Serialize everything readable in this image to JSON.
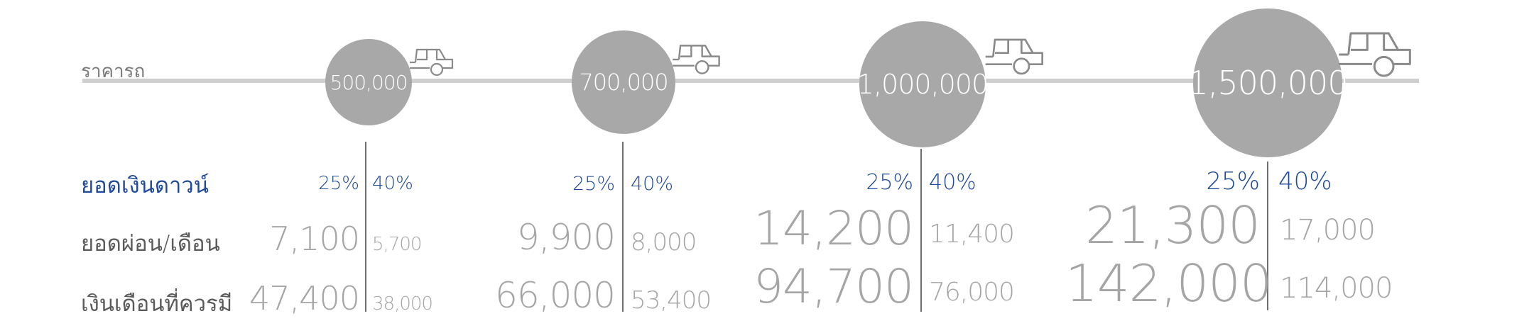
{
  "labels": {
    "price": "ราคารถ",
    "down_payment": "ยอดเงินดาวน์",
    "monthly_payment": "ยอดผ่อน/เดือน",
    "required_salary": "เงินเดือนที่ควรมี"
  },
  "tiers": [
    {
      "price": "500,000",
      "pct_a": "25%",
      "pct_b": "40%",
      "pay_a": "7,100",
      "pay_b": "5,700",
      "salary_a": "47,400",
      "salary_b": "38,000"
    },
    {
      "price": "700,000",
      "pct_a": "25%",
      "pct_b": "40%",
      "pay_a": "9,900",
      "pay_b": "8,000",
      "salary_a": "66,000",
      "salary_b": "53,400"
    },
    {
      "price": "1,000,000",
      "pct_a": "25%",
      "pct_b": "40%",
      "pay_a": "14,200",
      "pay_b": "11,400",
      "salary_a": "94,700",
      "salary_b": "76,000"
    },
    {
      "price": "1,500,000",
      "pct_a": "25%",
      "pct_b": "40%",
      "pay_a": "21,300",
      "pay_b": "17,000",
      "salary_a": "142,000",
      "salary_b": "114,000"
    }
  ],
  "icons": {
    "car": "car-icon"
  },
  "colors": {
    "accent": "#1f4a9a",
    "circle": "#a8a8a8",
    "line": "#cfcfcf",
    "values": "#a5a5a5"
  }
}
